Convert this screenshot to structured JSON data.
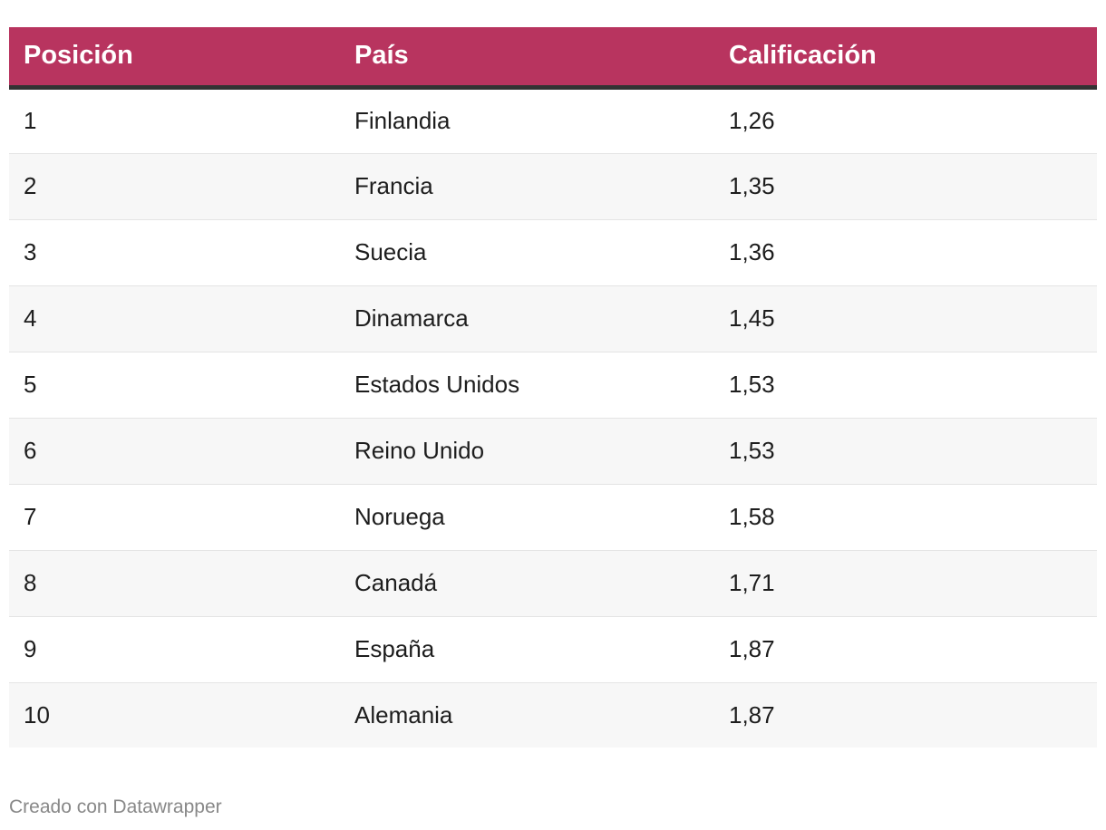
{
  "colors": {
    "header_bg": "#b8345f",
    "header_text": "#ffffff",
    "header_rule": "#333333",
    "row_alt_bg": "#f7f7f7",
    "footer_text": "#888888"
  },
  "chart_data": {
    "type": "table",
    "columns": [
      "Posición",
      "País",
      "Calificación"
    ],
    "rows": [
      [
        "1",
        "Finlandia",
        "1,26"
      ],
      [
        "2",
        "Francia",
        "1,35"
      ],
      [
        "3",
        "Suecia",
        "1,36"
      ],
      [
        "4",
        "Dinamarca",
        "1,45"
      ],
      [
        "5",
        "Estados Unidos",
        "1,53"
      ],
      [
        "6",
        "Reino Unido",
        "1,53"
      ],
      [
        "7",
        "Noruega",
        "1,58"
      ],
      [
        "8",
        "Canadá",
        "1,71"
      ],
      [
        "9",
        "España",
        "1,87"
      ],
      [
        "10",
        "Alemania",
        "1,87"
      ]
    ]
  },
  "footer": {
    "credit": "Creado con Datawrapper"
  }
}
